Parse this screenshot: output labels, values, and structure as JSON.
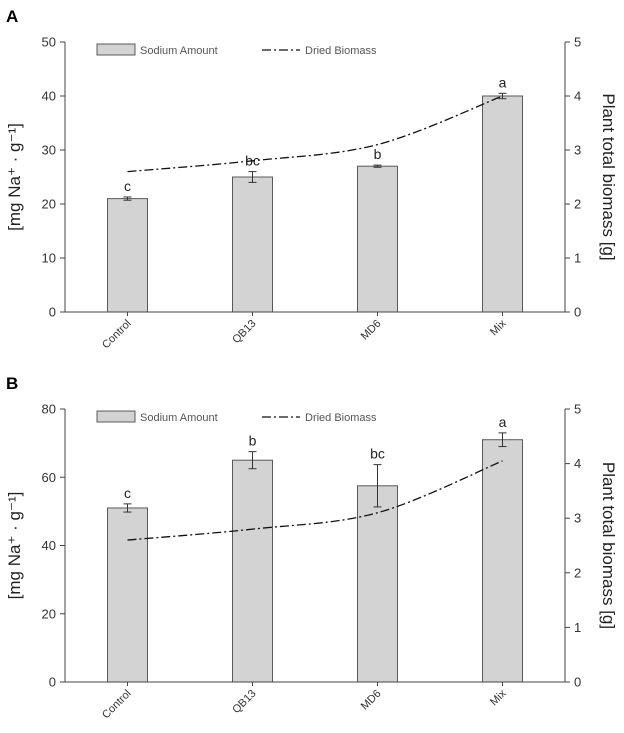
{
  "chart_data": [
    {
      "panel": "A",
      "type": "bar",
      "categories": [
        "Control",
        "QB13",
        "MD6",
        "Mix"
      ],
      "series": [
        {
          "name": "Sodium Amount",
          "type": "bar",
          "axis": "left",
          "values": [
            21,
            25,
            27,
            40
          ],
          "errors": [
            0.3,
            1.0,
            0.2,
            0.5
          ],
          "labels": [
            "c",
            "bc",
            "b",
            "a"
          ]
        },
        {
          "name": "Dried Biomass",
          "type": "line",
          "axis": "right",
          "style": "dash-dot",
          "values": [
            2.6,
            2.8,
            3.1,
            4.0
          ]
        }
      ],
      "ylabel_left": "[mg Na⁺ · g⁻¹]",
      "ylabel_right": "Plant total biomass [g]",
      "ylim_left": [
        0,
        50
      ],
      "ylim_right": [
        0,
        5
      ],
      "yticks_left": [
        "0",
        "10",
        "20",
        "30",
        "40",
        "50"
      ],
      "yticks_right": [
        "0",
        "1",
        "2",
        "3",
        "4",
        "5"
      ]
    },
    {
      "panel": "B",
      "type": "bar",
      "categories": [
        "Control",
        "QB13",
        "MD6",
        "Mix"
      ],
      "series": [
        {
          "name": "Sodium Amount",
          "type": "bar",
          "axis": "left",
          "values": [
            51,
            65,
            57.5,
            71
          ],
          "errors": [
            1.2,
            2.5,
            6.2,
            2.0
          ],
          "labels": [
            "c",
            "b",
            "bc",
            "a"
          ]
        },
        {
          "name": "Dried Biomass",
          "type": "line",
          "axis": "right",
          "style": "dash-dot",
          "values": [
            2.6,
            2.8,
            3.1,
            4.05
          ]
        }
      ],
      "ylabel_left": "[mg Na⁺ · g⁻¹]",
      "ylabel_right": "Plant total biomass [g]",
      "ylim_left": [
        0,
        80
      ],
      "ylim_right": [
        0,
        5
      ],
      "yticks_left": [
        "0",
        "20",
        "40",
        "60",
        "80"
      ],
      "yticks_right": [
        "0",
        "1",
        "2",
        "3",
        "4",
        "5"
      ]
    }
  ],
  "colors": {
    "bar_fill": "#d3d3d3",
    "bar_stroke": "#5a5a5a",
    "axis": "#444444",
    "line": "#111111"
  }
}
